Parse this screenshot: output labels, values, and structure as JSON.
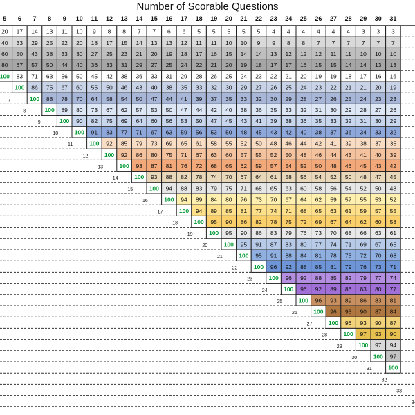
{
  "title": "Number of Scorable Questions",
  "chart_data": {
    "type": "heatmap",
    "title": "Number of Scorable Questions",
    "columns": [
      "5",
      "6",
      "7",
      "8",
      "9",
      "10",
      "11",
      "12",
      "13",
      "14",
      "15",
      "16",
      "17",
      "18",
      "19",
      "20",
      "21",
      "22",
      "23",
      "24",
      "25",
      "26",
      "27",
      "28",
      "29",
      "30",
      "31"
    ],
    "rows": [
      {
        "label": "",
        "first_col": 0,
        "values": [
          20,
          17,
          14,
          13,
          11,
          10,
          9,
          8,
          8,
          7,
          7,
          6,
          6,
          5,
          5,
          5,
          5,
          5,
          4,
          4,
          4,
          4,
          4,
          4,
          3,
          3,
          3
        ]
      },
      {
        "label": "",
        "first_col": 0,
        "values": [
          40,
          33,
          29,
          25,
          22,
          20,
          18,
          17,
          15,
          14,
          13,
          13,
          12,
          11,
          11,
          10,
          10,
          9,
          9,
          8,
          8,
          7,
          7,
          7,
          7,
          7,
          7
        ]
      },
      {
        "label": "",
        "first_col": 0,
        "values": [
          60,
          50,
          43,
          38,
          33,
          30,
          27,
          25,
          23,
          21,
          20,
          19,
          18,
          17,
          16,
          15,
          14,
          14,
          13,
          12,
          12,
          12,
          11,
          11,
          10,
          10,
          10
        ]
      },
      {
        "label": "",
        "first_col": 0,
        "values": [
          80,
          67,
          57,
          50,
          44,
          40,
          36,
          33,
          31,
          29,
          27,
          25,
          24,
          22,
          21,
          20,
          19,
          18,
          17,
          17,
          16,
          15,
          15,
          14,
          14,
          13,
          13
        ]
      },
      {
        "label": "",
        "first_col": 0,
        "values": [
          100,
          83,
          71,
          63,
          56,
          50,
          45,
          42,
          38,
          36,
          33,
          31,
          29,
          28,
          26,
          25,
          24,
          23,
          22,
          21,
          20,
          19,
          19,
          18,
          17,
          16,
          16
        ]
      },
      {
        "label": "",
        "first_col": 1,
        "values": [
          100,
          86,
          75,
          67,
          60,
          55,
          50,
          46,
          43,
          40,
          38,
          35,
          33,
          32,
          30,
          29,
          27,
          26,
          25,
          24,
          23,
          22,
          21,
          21,
          20,
          19
        ]
      },
      {
        "label": "7",
        "first_col": 2,
        "values": [
          100,
          88,
          78,
          70,
          64,
          58,
          54,
          50,
          47,
          44,
          41,
          39,
          37,
          35,
          33,
          32,
          30,
          29,
          28,
          27,
          26,
          25,
          24,
          23,
          23
        ]
      },
      {
        "label": "8",
        "first_col": 3,
        "values": [
          100,
          89,
          80,
          73,
          67,
          62,
          57,
          53,
          50,
          47,
          44,
          42,
          40,
          38,
          36,
          35,
          33,
          32,
          31,
          30,
          29,
          28,
          27,
          26
        ]
      },
      {
        "label": "9",
        "first_col": 4,
        "values": [
          100,
          90,
          82,
          75,
          69,
          64,
          60,
          56,
          53,
          50,
          47,
          45,
          43,
          41,
          39,
          38,
          36,
          35,
          33,
          32,
          31,
          30,
          29
        ]
      },
      {
        "label": "10",
        "first_col": 5,
        "values": [
          100,
          91,
          83,
          77,
          71,
          67,
          63,
          59,
          56,
          53,
          50,
          48,
          45,
          43,
          42,
          40,
          38,
          37,
          36,
          34,
          33,
          32
        ]
      },
      {
        "label": "11",
        "first_col": 6,
        "values": [
          100,
          92,
          85,
          79,
          73,
          69,
          65,
          61,
          58,
          55,
          52,
          50,
          48,
          46,
          44,
          42,
          41,
          39,
          38,
          37,
          35
        ]
      },
      {
        "label": "12",
        "first_col": 7,
        "values": [
          100,
          92,
          86,
          80,
          75,
          71,
          67,
          63,
          60,
          57,
          55,
          52,
          50,
          48,
          46,
          44,
          43,
          41,
          40,
          39
        ]
      },
      {
        "label": "13",
        "first_col": 8,
        "values": [
          100,
          93,
          87,
          81,
          76,
          72,
          68,
          65,
          62,
          59,
          57,
          54,
          52,
          50,
          48,
          46,
          45,
          43,
          42
        ]
      },
      {
        "label": "14",
        "first_col": 9,
        "values": [
          100,
          93,
          88,
          82,
          78,
          74,
          70,
          67,
          64,
          61,
          58,
          56,
          54,
          52,
          50,
          48,
          47,
          45
        ]
      },
      {
        "label": "15",
        "first_col": 10,
        "values": [
          100,
          94,
          88,
          83,
          79,
          75,
          71,
          68,
          65,
          63,
          60,
          58,
          56,
          54,
          52,
          50,
          48
        ]
      },
      {
        "label": "16",
        "first_col": 11,
        "values": [
          100,
          94,
          89,
          84,
          80,
          76,
          73,
          70,
          67,
          64,
          62,
          59,
          57,
          55,
          53,
          52
        ]
      },
      {
        "label": "17",
        "first_col": 12,
        "values": [
          100,
          94,
          89,
          85,
          81,
          77,
          74,
          71,
          68,
          65,
          63,
          61,
          59,
          57,
          55
        ]
      },
      {
        "label": "18",
        "first_col": 13,
        "values": [
          100,
          95,
          90,
          86,
          82,
          78,
          75,
          72,
          69,
          67,
          64,
          62,
          60,
          58
        ]
      },
      {
        "label": "19",
        "first_col": 14,
        "values": [
          100,
          95,
          90,
          86,
          83,
          79,
          76,
          73,
          70,
          68,
          66,
          63,
          61
        ]
      },
      {
        "label": "20",
        "first_col": 15,
        "values": [
          100,
          95,
          91,
          87,
          83,
          80,
          77,
          74,
          71,
          69,
          67,
          65
        ]
      },
      {
        "label": "21",
        "first_col": 16,
        "values": [
          100,
          95,
          91,
          88,
          84,
          81,
          78,
          75,
          72,
          70,
          68
        ]
      },
      {
        "label": "22",
        "first_col": 17,
        "values": [
          100,
          96,
          92,
          88,
          85,
          81,
          79,
          76,
          73,
          71
        ]
      },
      {
        "label": "23",
        "first_col": 18,
        "values": [
          100,
          96,
          92,
          88,
          85,
          82,
          79,
          77,
          74
        ]
      },
      {
        "label": "24",
        "first_col": 19,
        "values": [
          100,
          96,
          92,
          89,
          86,
          83,
          80,
          77
        ]
      },
      {
        "label": "25",
        "first_col": 20,
        "values": [
          100,
          96,
          93,
          89,
          86,
          83,
          81
        ]
      },
      {
        "label": "26",
        "first_col": 21,
        "values": [
          100,
          96,
          93,
          90,
          87,
          84
        ]
      },
      {
        "label": "27",
        "first_col": 22,
        "values": [
          100,
          96,
          93,
          90,
          87
        ]
      },
      {
        "label": "28",
        "first_col": 23,
        "values": [
          100,
          97,
          93,
          90
        ]
      },
      {
        "label": "29",
        "first_col": 24,
        "values": [
          100,
          97,
          94
        ]
      },
      {
        "label": "30",
        "first_col": 25,
        "values": [
          100,
          97
        ]
      },
      {
        "label": "31",
        "first_col": 26,
        "values": [
          100
        ]
      },
      {
        "label": "32",
        "first_col": 27,
        "values": []
      },
      {
        "label": "33",
        "first_col": 28,
        "values": []
      },
      {
        "label": "34",
        "first_col": 29,
        "values": []
      },
      {
        "label": "35",
        "first_col": 30,
        "values": []
      }
    ],
    "row_shades": [
      "#ffffff",
      "#d9d9d9",
      "#bfbfbf",
      "#a6a6a6",
      "#ffffff",
      "#c9d3e8",
      "#a8b6d8",
      "#dde6f4",
      "#c8d6ee",
      "#8fa8dc",
      "#f8dcc4",
      "#f5c29e",
      "#f2a878",
      "#e8d7b8",
      "#e6e6e6",
      "#fff0b0",
      "#ffe08a",
      "#fbd06a",
      "#e8e8e8",
      "#b7cbe8",
      "#8fb0e0",
      "#6e95d8",
      "#b48ee0",
      "#a070d8",
      "#c89060",
      "#b07840",
      "#f2d37a",
      "#e8c050",
      "#d9d9d9",
      "#c4c4c4",
      "#70c070",
      "#ffffff",
      "#ffffff",
      "#ffffff",
      "#ffffff"
    ],
    "highlight_value_color": "#009933",
    "grid": true
  }
}
